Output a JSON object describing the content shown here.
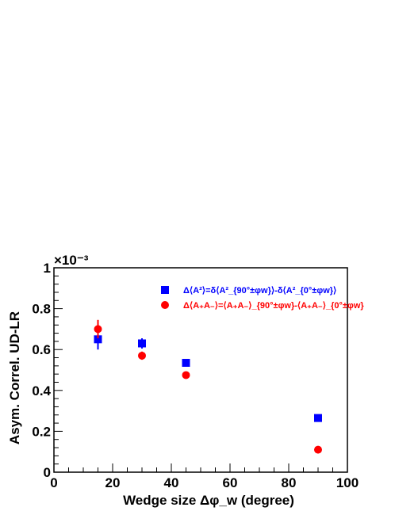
{
  "chart_data": {
    "type": "scatter",
    "xlabel": "Wedge size Δφ_w (degree)",
    "ylabel": "Asym. Correl. UD-LR",
    "multiplier": "×10⁻³",
    "xlim": [
      0,
      100
    ],
    "ylim": [
      0,
      1
    ],
    "x_ticks": [
      0,
      20,
      40,
      60,
      80,
      100
    ],
    "y_ticks": [
      0,
      0.2,
      0.4,
      0.6,
      0.8,
      1
    ],
    "legend_position": "top-center",
    "series": [
      {
        "name": "Δ⟨A²⟩=δ⟨A²_{90°±φw}⟩-δ⟨A²_{0°±φw}⟩",
        "marker": "square",
        "color": "#0000ff",
        "x": [
          15,
          30,
          45,
          90
        ],
        "y": [
          0.65,
          0.63,
          0.535,
          0.265
        ],
        "yerr": [
          0.05,
          0.025,
          0.0,
          0.0
        ]
      },
      {
        "name": "Δ⟨A₊A₋⟩=⟨A₊A₋⟩_{90°±φw}-⟨A₊A₋⟩_{0°±φw}",
        "marker": "circle",
        "color": "#ff0000",
        "x": [
          15,
          30,
          45,
          90
        ],
        "y": [
          0.7,
          0.57,
          0.475,
          0.11
        ],
        "yerr": [
          0.045,
          0.02,
          0.0,
          0.0
        ]
      }
    ]
  }
}
